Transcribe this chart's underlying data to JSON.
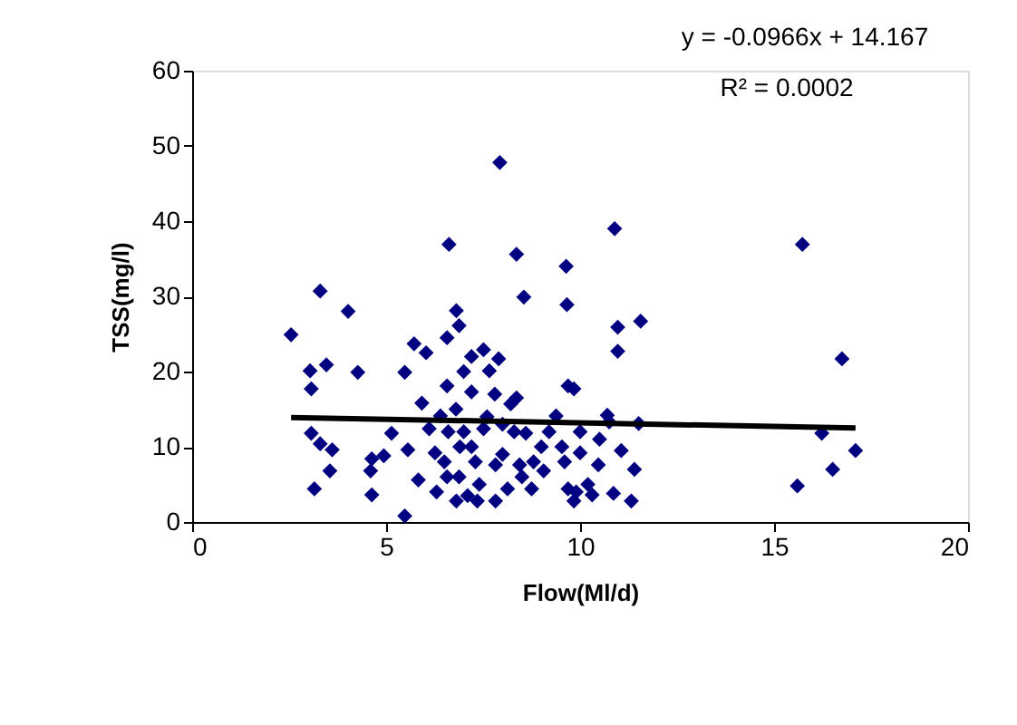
{
  "chart_data": {
    "type": "scatter",
    "xlabel": "Flow(Ml/d)",
    "ylabel": "TSS(mg/l)",
    "xlim": [
      0,
      20
    ],
    "xticks": [
      0,
      5,
      10,
      15,
      20
    ],
    "ylim": [
      0,
      60
    ],
    "yticks": [
      0,
      10,
      20,
      30,
      40,
      50,
      60
    ],
    "grid": false,
    "annotations": [
      "y = -0.0966x + 14.167",
      "R² = 0.0002"
    ],
    "series": [
      {
        "color": "#000080",
        "marker": "diamond",
        "x": [
          2.55,
          3.3,
          4.02,
          3.04,
          3.46,
          3.07,
          4.27,
          5.48,
          3.07,
          3.3,
          3.61,
          3.55,
          3.15,
          4.63,
          4.6,
          4.63,
          4.94,
          5.14,
          5.48,
          5.92,
          5.56,
          5.83,
          6.62,
          7.93,
          8.36,
          8.55,
          9.64,
          9.66,
          6.81,
          5.72,
          6.03,
          6.57,
          6.88,
          7.51,
          7.9,
          7.66,
          8.36,
          8.21,
          8.6,
          6.57,
          6.4,
          6.26,
          6.57,
          6.81,
          7.2,
          7.51,
          7.82,
          8.13,
          7.35,
          8.75,
          9.06,
          9.38,
          9.69,
          9.53,
          9.69,
          7.2,
          6.88,
          8.44,
          7.82,
          6.11,
          10.89,
          10.97,
          11.56,
          10.97,
          15.73,
          16.75,
          9.84,
          10.7,
          11.51,
          11.06,
          11.4,
          10.86,
          11.32,
          9.84,
          10.31,
          10.0,
          10.47,
          10.75,
          16.23,
          17.1,
          16.51,
          15.6,
          7.0,
          7.3,
          7.6,
          7.0,
          6.8,
          7.4,
          8.0,
          8.3,
          8.8,
          9.0,
          9.2,
          6.5,
          6.3,
          7.1,
          10.2,
          10.5,
          10.0,
          9.6,
          8.5,
          6.9,
          7.8,
          7.2,
          6.6,
          8.0,
          9.9
        ],
        "values": [
          24.9,
          30.7,
          28.0,
          20.1,
          20.9,
          17.7,
          19.9,
          19.9,
          11.8,
          10.4,
          9.6,
          6.8,
          4.4,
          8.4,
          6.8,
          3.6,
          8.8,
          11.8,
          0.8,
          15.8,
          9.6,
          5.6,
          36.9,
          47.8,
          35.6,
          29.9,
          34.0,
          28.9,
          28.1,
          23.7,
          22.5,
          24.5,
          26.1,
          22.9,
          21.7,
          20.1,
          16.5,
          15.7,
          11.8,
          18.1,
          14.1,
          9.2,
          6.0,
          2.8,
          17.3,
          12.4,
          7.6,
          4.4,
          2.8,
          4.4,
          6.8,
          14.1,
          18.1,
          10.0,
          4.4,
          10.0,
          6.0,
          7.6,
          2.8,
          12.4,
          39.0,
          25.9,
          26.7,
          22.7,
          36.9,
          21.7,
          17.7,
          14.2,
          13.1,
          9.5,
          7.0,
          3.8,
          2.8,
          2.8,
          3.6,
          9.2,
          7.6,
          13.3,
          11.8,
          9.5,
          7.0,
          4.8,
          12.0,
          8.0,
          14.0,
          20.0,
          15.0,
          5.0,
          9.0,
          12.0,
          8.0,
          10.0,
          12.0,
          8.0,
          4.0,
          3.5,
          5.0,
          11.0,
          12.0,
          8.0,
          6.0,
          10.0,
          17.0,
          22.0,
          12.0,
          13.0,
          4.0
        ]
      },
      {
        "type": "line",
        "color": "#000000",
        "x": [
          2.55,
          17.1
        ],
        "values": [
          13.9,
          12.5
        ]
      }
    ]
  }
}
